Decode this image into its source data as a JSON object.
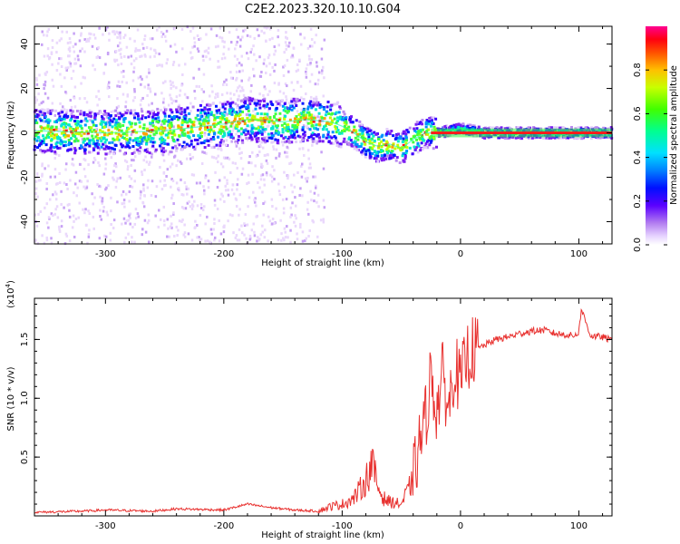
{
  "title": "C2E2.2023.320.10.10.G04",
  "chart_data": [
    {
      "type": "heatmap",
      "xlabel": "Height of straight line (km)",
      "ylabel": "Frequency (Hz)",
      "xlim": [
        -360,
        128
      ],
      "ylim": [
        -50,
        48
      ],
      "xticks": [
        -300,
        -200,
        -100,
        0,
        100
      ],
      "xtick_labels": [
        "-300",
        "-200",
        "-100",
        "0",
        "100"
      ],
      "yticks": [
        -40,
        -20,
        0,
        20,
        40
      ],
      "ytick_labels": [
        "-40",
        "-20",
        "0",
        "20",
        "40"
      ],
      "colorbar": {
        "label": "Normalized spectral amplitude",
        "range": [
          0,
          1
        ],
        "ticks": [
          0.0,
          0.2,
          0.4,
          0.6,
          0.8
        ],
        "tick_labels": [
          "0.0",
          "0.2",
          "0.4",
          "0.6",
          "0.8"
        ]
      },
      "ridge": {
        "heights": [
          -360,
          -300,
          -250,
          -200,
          -180,
          -150,
          -130,
          -110,
          -100,
          -90,
          -80,
          -70,
          -60,
          -50,
          -40,
          -30,
          -20,
          -10,
          0,
          10,
          20,
          50,
          100,
          128
        ],
        "frequency": [
          1,
          0,
          1,
          4,
          6,
          5,
          6,
          5,
          3,
          0,
          -4,
          -6,
          -5,
          -7,
          -3,
          0,
          0,
          1,
          2,
          1,
          0,
          0,
          0,
          0
        ]
      }
    },
    {
      "type": "line",
      "xlabel": "Height of straight line (km)",
      "ylabel": "SNR (10 * v/v)",
      "y_scale_label": "(x10",
      "y_scale_exp": "4",
      "xlim": [
        -360,
        128
      ],
      "ylim": [
        0,
        1.85
      ],
      "xticks": [
        -300,
        -200,
        -100,
        0,
        100
      ],
      "xtick_labels": [
        "-300",
        "-200",
        "-100",
        "0",
        "100"
      ],
      "yticks": [
        0.5,
        1.0,
        1.5
      ],
      "ytick_labels": [
        "0.5",
        "1.0",
        "1.5"
      ],
      "series": [
        {
          "name": "SNR",
          "color": "#e8312f",
          "x": [
            -360,
            -320,
            -300,
            -260,
            -240,
            -200,
            -180,
            -160,
            -140,
            -120,
            -110,
            -100,
            -90,
            -80,
            -75,
            -70,
            -65,
            -60,
            -50,
            -40,
            -35,
            -30,
            -25,
            -20,
            -15,
            -10,
            -5,
            0,
            5,
            10,
            20,
            30,
            40,
            50,
            60,
            70,
            80,
            90,
            95,
            100,
            102,
            110,
            120,
            128
          ],
          "y": [
            0.03,
            0.04,
            0.05,
            0.04,
            0.06,
            0.05,
            0.1,
            0.07,
            0.05,
            0.04,
            0.08,
            0.1,
            0.15,
            0.3,
            0.45,
            0.25,
            0.15,
            0.12,
            0.1,
            0.3,
            0.6,
            0.8,
            1.2,
            0.9,
            1.2,
            0.9,
            1.3,
            1.1,
            1.35,
            1.4,
            1.45,
            1.5,
            1.52,
            1.55,
            1.57,
            1.58,
            1.55,
            1.54,
            1.53,
            1.56,
            1.76,
            1.53,
            1.52,
            1.49
          ]
        }
      ]
    }
  ]
}
